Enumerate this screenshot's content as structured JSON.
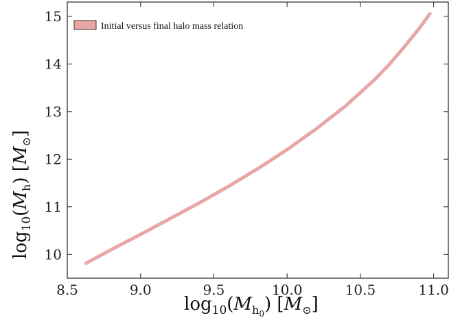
{
  "chart_data": {
    "type": "line",
    "title": "",
    "xlabel": "log10(M_h0) [M_sun]",
    "ylabel": "log10(M_h) [M_sun]",
    "xlim": [
      8.5,
      11.1
    ],
    "ylim": [
      9.5,
      15.3
    ],
    "xticks": [
      8.5,
      9.0,
      9.5,
      10.0,
      10.5,
      11.0
    ],
    "xtick_labels": [
      "8.5",
      "9.0",
      "9.5",
      "10.0",
      "10.5",
      "11.0"
    ],
    "yticks": [
      10,
      11,
      12,
      13,
      14,
      15
    ],
    "ytick_labels": [
      "10",
      "11",
      "12",
      "13",
      "14",
      "15"
    ],
    "grid": false,
    "legend_position": "top-left",
    "series": [
      {
        "name": "Initial versus final halo mass relation",
        "color": "#e8a7a7",
        "x": [
          8.62,
          8.8,
          9.0,
          9.2,
          9.4,
          9.6,
          9.8,
          10.0,
          10.2,
          10.4,
          10.6,
          10.7,
          10.8,
          10.9,
          10.98
        ],
        "y": [
          9.8,
          10.1,
          10.42,
          10.75,
          11.08,
          11.43,
          11.8,
          12.2,
          12.64,
          13.12,
          13.68,
          14.0,
          14.36,
          14.74,
          15.08
        ]
      }
    ]
  }
}
